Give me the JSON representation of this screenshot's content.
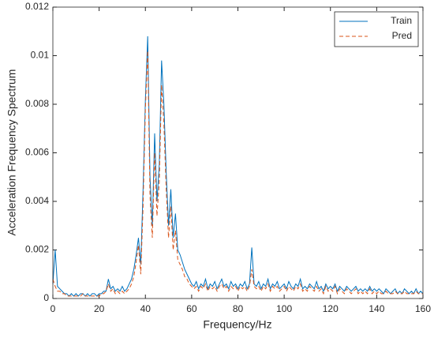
{
  "chart_data": {
    "type": "line",
    "x_label": "Frequency/Hz",
    "y_label": "Acceleration Frequency Spectrum",
    "x": [
      0,
      1,
      2,
      3,
      4,
      5,
      6,
      7,
      8,
      9,
      10,
      11,
      12,
      13,
      14,
      15,
      16,
      17,
      18,
      19,
      20,
      21,
      22,
      23,
      24,
      25,
      26,
      27,
      28,
      29,
      30,
      31,
      32,
      33,
      34,
      35,
      36,
      37,
      38,
      39,
      40,
      41,
      42,
      43,
      44,
      45,
      46,
      47,
      48,
      49,
      50,
      51,
      52,
      53,
      54,
      55,
      56,
      57,
      58,
      59,
      60,
      61,
      62,
      63,
      64,
      65,
      66,
      67,
      68,
      69,
      70,
      71,
      72,
      73,
      74,
      75,
      76,
      77,
      78,
      79,
      80,
      81,
      82,
      83,
      84,
      85,
      86,
      87,
      88,
      89,
      90,
      91,
      92,
      93,
      94,
      95,
      96,
      97,
      98,
      99,
      100,
      101,
      102,
      103,
      104,
      105,
      106,
      107,
      108,
      109,
      110,
      111,
      112,
      113,
      114,
      115,
      116,
      117,
      118,
      119,
      120,
      121,
      122,
      123,
      124,
      125,
      126,
      127,
      128,
      129,
      130,
      131,
      132,
      133,
      134,
      135,
      136,
      137,
      138,
      139,
      140,
      141,
      142,
      143,
      144,
      145,
      146,
      147,
      148,
      149,
      150,
      151,
      152,
      153,
      154,
      155,
      156,
      157,
      158,
      159,
      160
    ],
    "series": [
      {
        "name": "Train",
        "color": "#0072bd",
        "style": "solid",
        "values": [
          0.0006,
          0.002,
          0.0005,
          0.0004,
          0.0003,
          0.0002,
          0.0002,
          0.0001,
          0.0002,
          0.0001,
          0.0002,
          0.0001,
          0.0002,
          0.0002,
          0.0001,
          0.0002,
          0.0001,
          0.0002,
          0.0002,
          0.0001,
          0.0002,
          0.0002,
          0.0003,
          0.0003,
          0.0008,
          0.0004,
          0.0005,
          0.0003,
          0.0004,
          0.0003,
          0.0005,
          0.0003,
          0.0004,
          0.0006,
          0.0008,
          0.0012,
          0.0018,
          0.0025,
          0.0014,
          0.0045,
          0.0082,
          0.0108,
          0.005,
          0.003,
          0.0068,
          0.004,
          0.0055,
          0.0098,
          0.008,
          0.0052,
          0.003,
          0.0045,
          0.0025,
          0.0035,
          0.002,
          0.0018,
          0.0015,
          0.0012,
          0.001,
          0.0008,
          0.0006,
          0.0005,
          0.0007,
          0.0004,
          0.0006,
          0.0005,
          0.0008,
          0.0004,
          0.0006,
          0.0005,
          0.0007,
          0.0004,
          0.0006,
          0.0008,
          0.0005,
          0.0006,
          0.0004,
          0.0007,
          0.0005,
          0.0006,
          0.0004,
          0.0006,
          0.0005,
          0.0007,
          0.0004,
          0.0006,
          0.0021,
          0.0006,
          0.0005,
          0.0007,
          0.0004,
          0.0006,
          0.0005,
          0.0008,
          0.0004,
          0.0006,
          0.0005,
          0.0007,
          0.0004,
          0.0005,
          0.0006,
          0.0004,
          0.0007,
          0.0005,
          0.0004,
          0.0006,
          0.0005,
          0.0008,
          0.0004,
          0.0005,
          0.0004,
          0.0006,
          0.0005,
          0.0004,
          0.0007,
          0.0004,
          0.0005,
          0.0003,
          0.0006,
          0.0004,
          0.0005,
          0.0004,
          0.0006,
          0.0003,
          0.0005,
          0.0004,
          0.0003,
          0.0005,
          0.0004,
          0.0003,
          0.0004,
          0.0005,
          0.0003,
          0.0004,
          0.0003,
          0.0004,
          0.0003,
          0.0005,
          0.0003,
          0.0004,
          0.0003,
          0.0004,
          0.0003,
          0.0002,
          0.0004,
          0.0003,
          0.0002,
          0.0003,
          0.0004,
          0.0002,
          0.0003,
          0.0002,
          0.0004,
          0.0003,
          0.0002,
          0.0003,
          0.0002,
          0.0004,
          0.0002,
          0.0003,
          0.0002
        ]
      },
      {
        "name": "Pred",
        "color": "#d95319",
        "style": "dashed",
        "values": [
          0.0008,
          0.0005,
          0.0003,
          0.0003,
          0.0002,
          0.0002,
          0.0001,
          0.0001,
          0.0001,
          0.0001,
          0.0001,
          0.0001,
          0.0001,
          0.0002,
          0.0001,
          0.0001,
          0.0001,
          0.0001,
          0.0001,
          0.0001,
          0.0001,
          0.0002,
          0.0002,
          0.0003,
          0.0006,
          0.0003,
          0.0004,
          0.0002,
          0.0003,
          0.0002,
          0.0003,
          0.0002,
          0.0003,
          0.0004,
          0.0006,
          0.0009,
          0.0015,
          0.0022,
          0.001,
          0.0038,
          0.0078,
          0.0102,
          0.0042,
          0.0025,
          0.006,
          0.0034,
          0.0048,
          0.0088,
          0.0072,
          0.0045,
          0.0025,
          0.0038,
          0.002,
          0.0028,
          0.0016,
          0.0014,
          0.0012,
          0.0009,
          0.0008,
          0.0006,
          0.0005,
          0.0004,
          0.0005,
          0.0003,
          0.0005,
          0.0004,
          0.0006,
          0.0003,
          0.0005,
          0.0004,
          0.0005,
          0.0003,
          0.0005,
          0.0006,
          0.0004,
          0.0005,
          0.0003,
          0.0005,
          0.0004,
          0.0005,
          0.0003,
          0.0005,
          0.0004,
          0.0005,
          0.0003,
          0.0005,
          0.0012,
          0.0005,
          0.0004,
          0.0005,
          0.0003,
          0.0005,
          0.0004,
          0.0006,
          0.0003,
          0.0005,
          0.0004,
          0.0005,
          0.0003,
          0.0004,
          0.0005,
          0.0003,
          0.0005,
          0.0004,
          0.0003,
          0.0005,
          0.0004,
          0.0006,
          0.0003,
          0.0004,
          0.0003,
          0.0005,
          0.0004,
          0.0003,
          0.0005,
          0.0003,
          0.0004,
          0.0002,
          0.0005,
          0.0003,
          0.0004,
          0.0003,
          0.0005,
          0.0002,
          0.0004,
          0.0003,
          0.0002,
          0.0004,
          0.0003,
          0.0002,
          0.0003,
          0.0004,
          0.0002,
          0.0003,
          0.0002,
          0.0003,
          0.0002,
          0.0004,
          0.0002,
          0.0003,
          0.0002,
          0.0003,
          0.0002,
          0.0002,
          0.0003,
          0.0002,
          0.0002,
          0.0002,
          0.0003,
          0.0002,
          0.0002,
          0.0002,
          0.0003,
          0.0002,
          0.0002,
          0.0002,
          0.0002,
          0.0003,
          0.0002,
          0.0002,
          0.0002
        ]
      }
    ],
    "xlim": [
      0,
      160
    ],
    "xticks": [
      0,
      20,
      40,
      60,
      80,
      100,
      120,
      140,
      160
    ],
    "ylim": [
      0,
      0.012
    ],
    "yticks": [
      0,
      0.002,
      0.004,
      0.006,
      0.008,
      0.01,
      0.012
    ],
    "legend": "upper right"
  }
}
